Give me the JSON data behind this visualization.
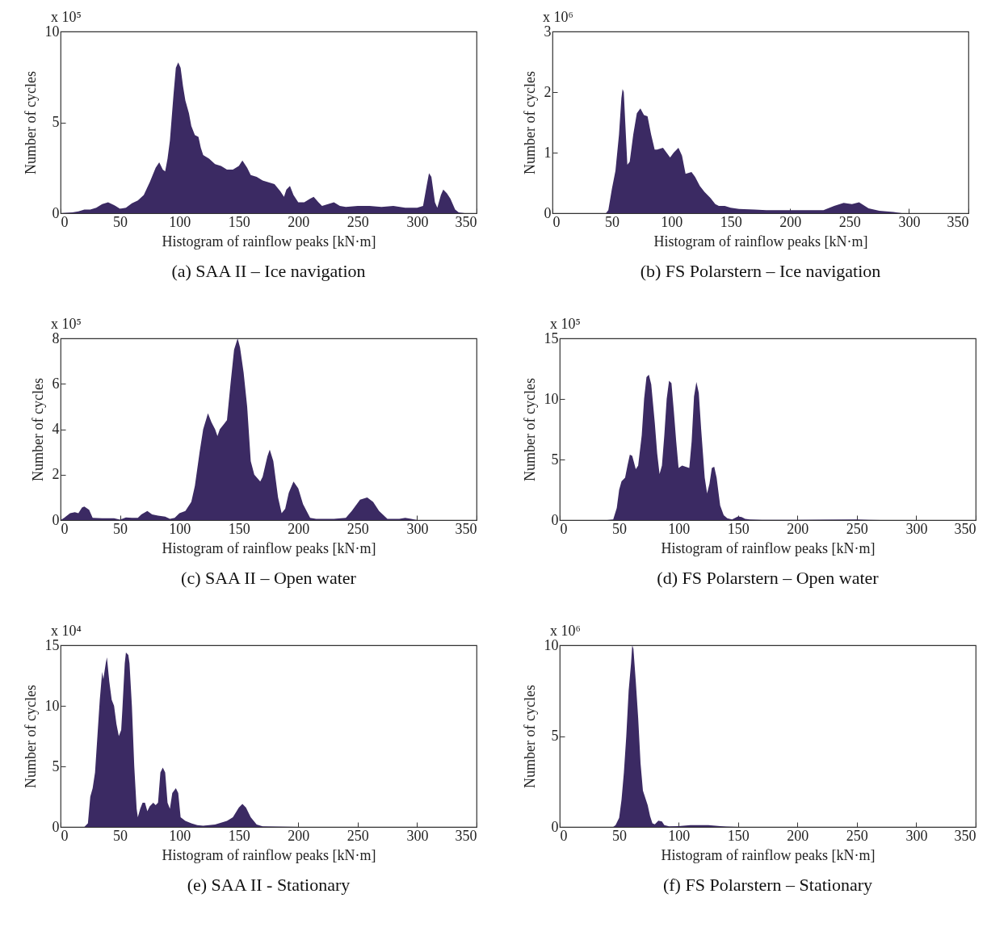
{
  "chart_data": [
    {
      "type": "area",
      "title": "(a)  SAA II – Ice navigation",
      "xlabel": "Histogram of rainflow peaks [kN·m]",
      "ylabel": "Number of cycles",
      "annotations": [
        "x 10⁵"
      ],
      "color": "#3b2a63",
      "xlim": [
        0,
        350
      ],
      "xticks": [
        0,
        50,
        100,
        150,
        200,
        250,
        300,
        350
      ],
      "ylim": [
        0,
        10
      ],
      "yticks": [
        0,
        5,
        10
      ],
      "x": [
        0,
        10,
        15,
        20,
        25,
        30,
        35,
        40,
        45,
        50,
        55,
        60,
        65,
        70,
        75,
        80,
        83,
        86,
        88,
        90,
        92,
        95,
        97,
        99,
        101,
        103,
        105,
        108,
        110,
        113,
        116,
        118,
        120,
        125,
        130,
        135,
        140,
        145,
        150,
        153,
        157,
        160,
        165,
        170,
        175,
        180,
        185,
        188,
        190,
        193,
        196,
        200,
        205,
        210,
        213,
        217,
        220,
        225,
        230,
        235,
        240,
        250,
        260,
        270,
        280,
        290,
        300,
        305,
        308,
        310,
        312,
        315,
        317,
        320,
        322,
        325,
        328,
        332,
        335,
        340,
        350
      ],
      "values": [
        0,
        0.05,
        0.1,
        0.2,
        0.2,
        0.3,
        0.5,
        0.6,
        0.45,
        0.25,
        0.3,
        0.55,
        0.7,
        1.0,
        1.7,
        2.5,
        2.8,
        2.4,
        2.3,
        3.0,
        4.0,
        6.5,
        8.0,
        8.3,
        8.0,
        7.0,
        6.2,
        5.5,
        4.8,
        4.3,
        4.2,
        3.6,
        3.2,
        3.0,
        2.7,
        2.6,
        2.4,
        2.4,
        2.6,
        2.9,
        2.5,
        2.1,
        2.0,
        1.8,
        1.7,
        1.6,
        1.2,
        0.9,
        1.3,
        1.5,
        1.0,
        0.6,
        0.6,
        0.8,
        0.9,
        0.6,
        0.4,
        0.5,
        0.6,
        0.4,
        0.35,
        0.4,
        0.4,
        0.35,
        0.4,
        0.3,
        0.3,
        0.4,
        1.5,
        2.2,
        2.0,
        0.6,
        0.3,
        1.0,
        1.3,
        1.1,
        0.8,
        0.2,
        0.05,
        0,
        0
      ]
    },
    {
      "type": "area",
      "title": "(b)  FS Polarstern – Ice navigation",
      "xlabel": "Histogram of rainflow peaks [kN·m]",
      "ylabel": "Number of cycles",
      "annotations": [
        "x 10⁶"
      ],
      "color": "#3b2a63",
      "xlim": [
        0,
        350
      ],
      "xticks": [
        0,
        50,
        100,
        150,
        200,
        250,
        300,
        350
      ],
      "ylim": [
        0,
        3
      ],
      "yticks": [
        0,
        1,
        2,
        3
      ],
      "x": [
        0,
        45,
        47,
        50,
        53,
        56,
        58,
        59,
        60,
        61,
        63,
        65,
        68,
        71,
        74,
        77,
        80,
        83,
        86,
        88,
        93,
        96,
        99,
        102,
        106,
        109,
        112,
        117,
        120,
        124,
        128,
        133,
        137,
        140,
        145,
        150,
        157,
        170,
        180,
        204,
        228,
        237,
        245,
        252,
        258,
        266,
        275,
        287,
        294,
        350
      ],
      "values": [
        0,
        0,
        0.05,
        0.4,
        0.7,
        1.3,
        1.9,
        2.05,
        2.0,
        1.6,
        0.8,
        0.85,
        1.3,
        1.65,
        1.73,
        1.62,
        1.6,
        1.3,
        1.05,
        1.05,
        1.08,
        1.0,
        0.92,
        1.0,
        1.08,
        0.95,
        0.65,
        0.68,
        0.6,
        0.45,
        0.35,
        0.25,
        0.15,
        0.12,
        0.12,
        0.09,
        0.07,
        0.06,
        0.05,
        0.05,
        0.05,
        0.12,
        0.17,
        0.15,
        0.18,
        0.08,
        0.04,
        0.02,
        0,
        0
      ]
    },
    {
      "type": "area",
      "title": "(c)  SAA II – Open water",
      "xlabel": "Histogram of rainflow peaks [kN·m]",
      "ylabel": "Number of cycles",
      "annotations": [
        "x 10⁵"
      ],
      "color": "#3b2a63",
      "xlim": [
        0,
        350
      ],
      "xticks": [
        0,
        50,
        100,
        150,
        200,
        250,
        300,
        350
      ],
      "ylim": [
        0,
        8
      ],
      "yticks": [
        0,
        2,
        4,
        6,
        8
      ],
      "x": [
        0,
        3,
        8,
        12,
        15,
        18,
        20,
        24,
        27,
        35,
        45,
        50,
        55,
        60,
        65,
        68,
        73,
        77,
        82,
        88,
        92,
        96,
        100,
        105,
        110,
        113,
        117,
        120,
        124,
        127,
        130,
        132,
        134,
        137,
        140,
        143,
        146,
        149,
        151,
        154,
        157,
        160,
        163,
        168,
        170,
        174,
        176,
        179,
        183,
        186,
        189,
        192,
        196,
        200,
        204,
        210,
        215,
        230,
        240,
        245,
        252,
        258,
        263,
        268,
        275,
        285,
        290,
        295,
        300,
        350
      ],
      "values": [
        0,
        0.1,
        0.3,
        0.35,
        0.3,
        0.55,
        0.6,
        0.45,
        0.1,
        0.08,
        0.08,
        0.02,
        0.12,
        0.1,
        0.1,
        0.25,
        0.4,
        0.25,
        0.2,
        0.15,
        0.05,
        0.1,
        0.3,
        0.4,
        0.8,
        1.5,
        3.0,
        4.0,
        4.7,
        4.3,
        4.0,
        3.7,
        4.0,
        4.2,
        4.4,
        6.0,
        7.5,
        8.0,
        7.6,
        6.5,
        5.0,
        2.6,
        2.0,
        1.7,
        1.9,
        2.8,
        3.1,
        2.6,
        1.0,
        0.3,
        0.5,
        1.2,
        1.7,
        1.4,
        0.7,
        0.1,
        0.05,
        0.05,
        0.1,
        0.4,
        0.9,
        1.0,
        0.8,
        0.4,
        0.05,
        0.05,
        0.1,
        0.05,
        0,
        0
      ]
    },
    {
      "type": "area",
      "title": "(d)  FS Polarstern – Open water",
      "xlabel": "Histogram of rainflow peaks [kN·m]",
      "ylabel": "Number of cycles",
      "annotations": [
        "x 10⁵"
      ],
      "color": "#3b2a63",
      "xlim": [
        0,
        350
      ],
      "xticks": [
        0,
        50,
        100,
        150,
        200,
        250,
        300,
        350
      ],
      "ylim": [
        0,
        15
      ],
      "yticks": [
        0,
        5,
        10,
        15
      ],
      "x": [
        0,
        40,
        45,
        48,
        50,
        52,
        55,
        57,
        59,
        61,
        64,
        66,
        69,
        71,
        73,
        75,
        77,
        80,
        82,
        84,
        86,
        88,
        90,
        92,
        94,
        96,
        98,
        100,
        103,
        106,
        109,
        111,
        113,
        115,
        117,
        119,
        122,
        124,
        126,
        128,
        130,
        132,
        135,
        138,
        141,
        145,
        150,
        153,
        156,
        160,
        170,
        200,
        250,
        260,
        270,
        350
      ],
      "values": [
        0,
        0,
        0.05,
        1.0,
        2.5,
        3.2,
        3.5,
        4.5,
        5.4,
        5.3,
        4.2,
        4.5,
        7.0,
        10,
        11.8,
        12.0,
        11.2,
        8.0,
        5.5,
        3.8,
        4.5,
        7,
        10,
        11.5,
        11.3,
        9,
        6.5,
        4.3,
        4.5,
        4.4,
        4.3,
        6.5,
        10.2,
        11.4,
        10.5,
        7.5,
        3.5,
        2.2,
        3.0,
        4.3,
        4.4,
        3.5,
        1.2,
        0.4,
        0.15,
        0.05,
        0.3,
        0.25,
        0.1,
        0.05,
        0.02,
        0.02,
        0.05,
        0.02,
        0,
        0
      ]
    },
    {
      "type": "area",
      "title": "(e)  SAA II - Stationary",
      "xlabel": "Histogram of rainflow peaks [kN·m]",
      "ylabel": "Number of cycles",
      "annotations": [
        "x 10⁴"
      ],
      "color": "#3b2a63",
      "xlim": [
        0,
        350
      ],
      "xticks": [
        0,
        50,
        100,
        150,
        200,
        250,
        300,
        350
      ],
      "ylim": [
        0,
        15
      ],
      "yticks": [
        0,
        5,
        10,
        15
      ],
      "x": [
        0,
        20,
        23,
        25,
        27,
        29,
        31,
        33,
        35,
        36,
        38,
        39,
        41,
        43,
        45,
        47,
        49,
        51,
        52,
        54,
        55,
        57,
        58,
        60,
        62,
        64,
        65,
        67,
        69,
        71,
        73,
        75,
        78,
        80,
        82,
        84,
        86,
        88,
        90,
        92,
        94,
        97,
        99,
        101,
        105,
        110,
        115,
        120,
        130,
        140,
        145,
        150,
        153,
        156,
        160,
        165,
        170,
        180,
        200,
        350
      ],
      "values": [
        0,
        0,
        0.3,
        2.5,
        3.2,
        4.5,
        7.5,
        10.5,
        12.8,
        12.2,
        13.5,
        14.0,
        12,
        10.5,
        10,
        8.5,
        7.5,
        8.0,
        9.7,
        13.5,
        14.4,
        14.2,
        13.5,
        10,
        5,
        1.5,
        0.8,
        1.5,
        2.0,
        2.0,
        1.3,
        1.7,
        2.0,
        1.8,
        2.0,
        4.5,
        4.9,
        4.5,
        2.0,
        1.5,
        2.8,
        3.2,
        2.8,
        0.8,
        0.5,
        0.3,
        0.15,
        0.1,
        0.2,
        0.5,
        0.8,
        1.6,
        1.9,
        1.6,
        0.8,
        0.2,
        0.05,
        0.03,
        0,
        0
      ]
    },
    {
      "type": "area",
      "title": "(f)  FS Polarstern – Stationary",
      "xlabel": "Histogram of rainflow peaks [kN·m]",
      "ylabel": "Number of cycles",
      "annotations": [
        "x 10⁶"
      ],
      "color": "#3b2a63",
      "xlim": [
        0,
        350
      ],
      "xticks": [
        0,
        50,
        100,
        150,
        200,
        250,
        300,
        350
      ],
      "ylim": [
        0,
        10
      ],
      "yticks": [
        0,
        5,
        10
      ],
      "x": [
        0,
        45,
        47,
        50,
        52,
        54,
        56,
        58,
        60,
        61,
        62,
        64,
        66,
        68,
        70,
        72,
        74,
        76,
        78,
        80,
        83,
        86,
        88,
        92,
        100,
        110,
        120,
        125,
        135,
        140,
        150,
        350
      ],
      "values": [
        0,
        0,
        0.1,
        0.5,
        1.5,
        3.0,
        5.0,
        7.5,
        9.0,
        10.0,
        9.8,
        8.0,
        6.0,
        3.5,
        2.0,
        1.6,
        1.2,
        0.6,
        0.2,
        0.15,
        0.35,
        0.3,
        0.1,
        0.03,
        0.05,
        0.1,
        0.1,
        0.1,
        0.05,
        0.02,
        0,
        0
      ]
    }
  ]
}
